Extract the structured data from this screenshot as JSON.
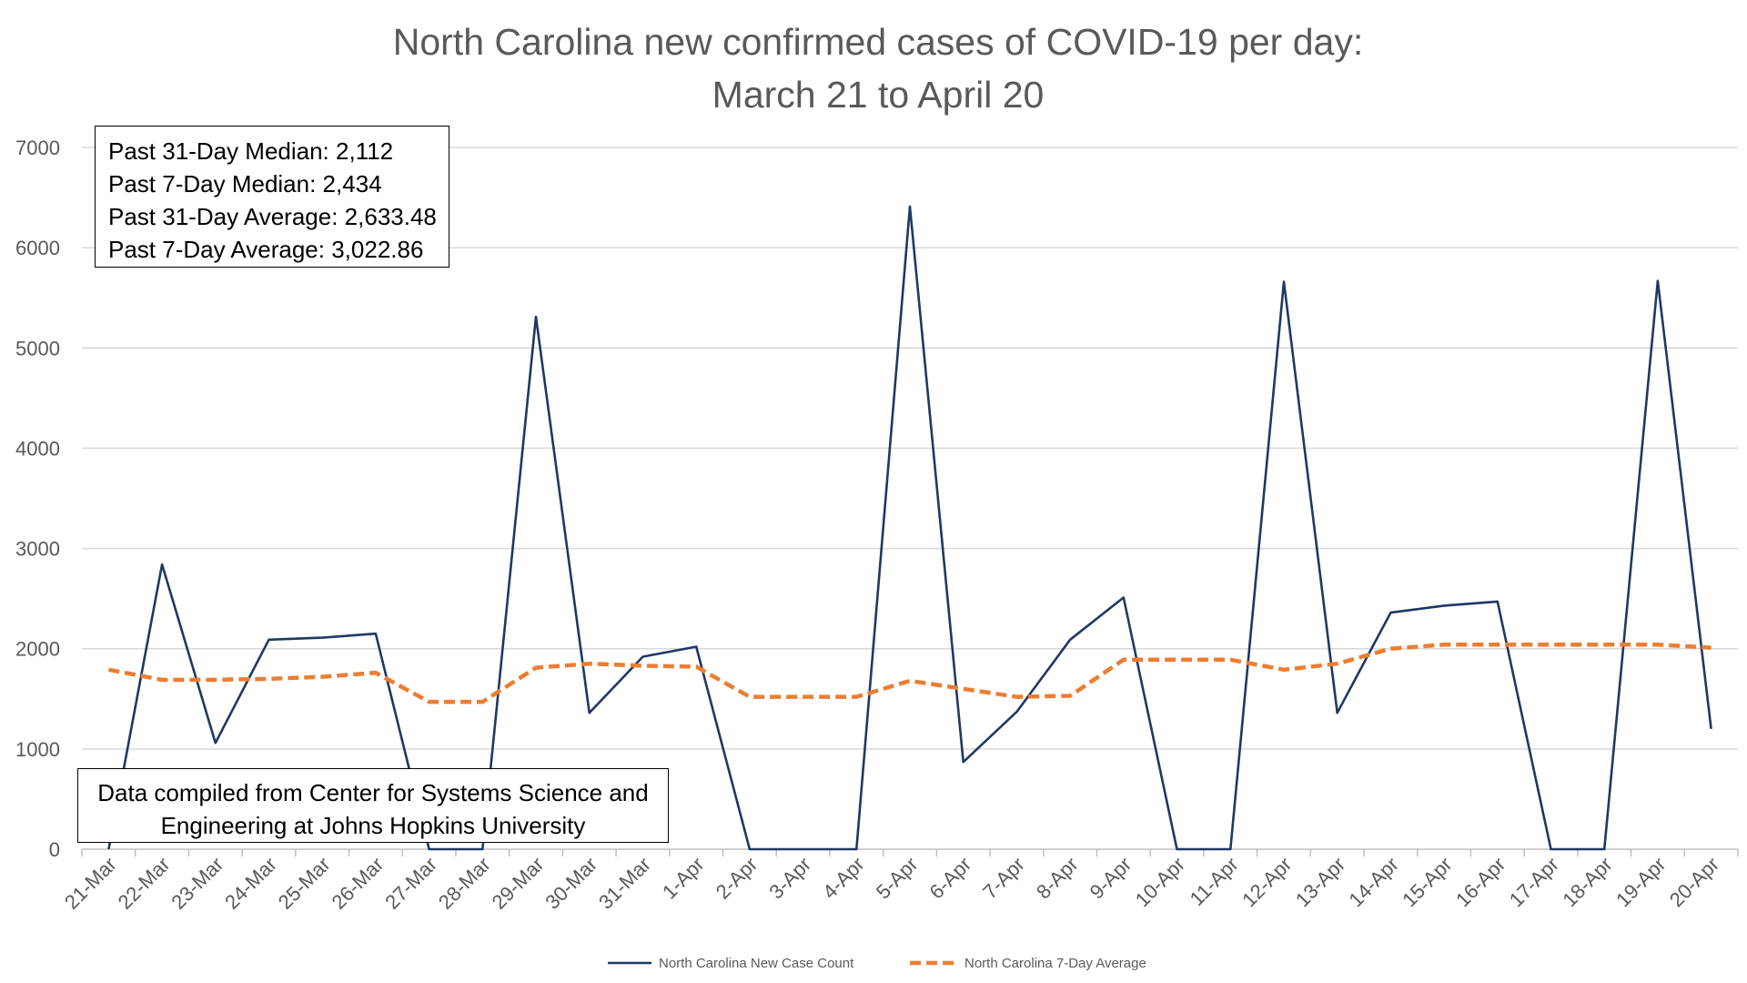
{
  "chart_data": {
    "type": "line",
    "title": "North Carolina new confirmed cases of COVID-19 per day:",
    "subtitle": "March 21 to April 20",
    "xlabel": "",
    "ylabel": "",
    "ylim": [
      0,
      7000
    ],
    "yticks": [
      0,
      1000,
      2000,
      3000,
      4000,
      5000,
      6000,
      7000
    ],
    "grid": true,
    "legend_position": "bottom",
    "categories": [
      "21-Mar",
      "22-Mar",
      "23-Mar",
      "24-Mar",
      "25-Mar",
      "26-Mar",
      "27-Mar",
      "28-Mar",
      "29-Mar",
      "30-Mar",
      "31-Mar",
      "1-Apr",
      "2-Apr",
      "3-Apr",
      "4-Apr",
      "5-Apr",
      "6-Apr",
      "7-Apr",
      "8-Apr",
      "9-Apr",
      "10-Apr",
      "11-Apr",
      "12-Apr",
      "13-Apr",
      "14-Apr",
      "15-Apr",
      "16-Apr",
      "17-Apr",
      "18-Apr",
      "19-Apr",
      "20-Apr"
    ],
    "series": [
      {
        "name": "North Carolina New Case Count",
        "color": "#1f3864",
        "style": "solid",
        "values": [
          0,
          2840,
          1060,
          2090,
          2110,
          2150,
          0,
          0,
          5310,
          1360,
          1920,
          2020,
          0,
          0,
          0,
          6410,
          870,
          1370,
          2090,
          2510,
          0,
          0,
          5660,
          1360,
          2360,
          2430,
          2470,
          0,
          0,
          5670,
          1200
        ]
      },
      {
        "name": "North Carolina 7-Day Average",
        "color": "#ed7d31",
        "style": "dashed",
        "values": [
          1790,
          1690,
          1690,
          1700,
          1720,
          1760,
          1470,
          1470,
          1810,
          1850,
          1830,
          1820,
          1520,
          1520,
          1520,
          1680,
          1600,
          1520,
          1530,
          1890,
          1890,
          1890,
          1790,
          1850,
          2000,
          2040,
          2040,
          2040,
          2040,
          2040,
          2010
        ]
      }
    ],
    "annotations": {
      "stats": [
        "Past 31-Day Median: 2,112",
        "Past 7-Day Median: 2,434",
        "Past 31-Day Average: 2,633.48",
        "Past 7-Day Average: 3,022.86"
      ],
      "source": [
        "Data compiled from Center for Systems Science and",
        "Engineering at Johns Hopkins University"
      ]
    }
  }
}
